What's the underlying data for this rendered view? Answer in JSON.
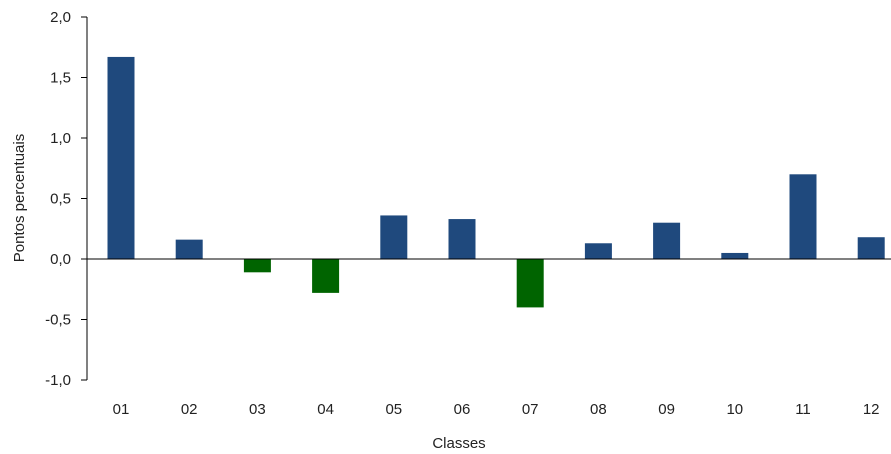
{
  "chart_data": {
    "type": "bar",
    "title": "",
    "xlabel": "Classes",
    "ylabel": "Pontos percentuais",
    "categories": [
      "01",
      "02",
      "03",
      "04",
      "05",
      "06",
      "07",
      "08",
      "09",
      "10",
      "11",
      "12"
    ],
    "values": [
      1.67,
      0.16,
      -0.11,
      -0.28,
      0.36,
      0.33,
      -0.4,
      0.13,
      0.3,
      0.05,
      0.7,
      0.18
    ],
    "ylim": [
      -1.0,
      2.0
    ],
    "yticks": [
      2.0,
      1.5,
      1.0,
      0.5,
      0.0,
      -0.5,
      -1.0
    ],
    "ytick_labels": [
      "2,0",
      "1,5",
      "1,0",
      "0,5",
      "0,0",
      "-0,5",
      "-1,0"
    ],
    "grid": false,
    "legend": "none",
    "colors": {
      "positive": "#1f497d",
      "negative": "#006400",
      "axis": "#000000"
    }
  }
}
